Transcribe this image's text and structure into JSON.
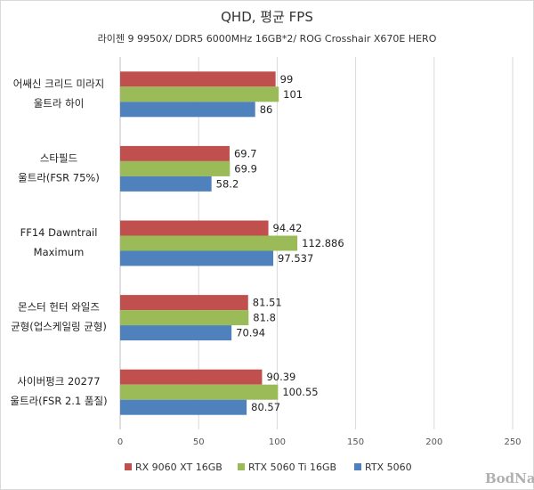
{
  "chart_data": {
    "type": "bar",
    "orientation": "horizontal",
    "title": "QHD, 평균 FPS",
    "subtitle": "라이젠 9 9950X/ DDR5 6000MHz 16GB*2/ ROG Crosshair X670E HERO",
    "categories": [
      [
        "어쌔신 크리드 미라지",
        "울트라 하이"
      ],
      [
        "스타필드",
        "울트라(FSR 75%)"
      ],
      [
        "FF14 Dawntrail",
        "Maximum"
      ],
      [
        "몬스터 헌터 와일즈",
        "균형(업스케일링 균형)"
      ],
      [
        "사이버펑크 20277",
        "울트라(FSR 2.1 품질)"
      ]
    ],
    "series": [
      {
        "name": "RX 9060 XT 16GB",
        "color": "#c0504d",
        "values": [
          99,
          69.7,
          94.42,
          81.51,
          90.39
        ],
        "labels": [
          "99",
          "69.7",
          "94.42",
          "81.51",
          "90.39"
        ]
      },
      {
        "name": "RTX 5060 Ti 16GB",
        "color": "#9bbb59",
        "values": [
          101,
          69.9,
          112.886,
          81.8,
          100.55
        ],
        "labels": [
          "101",
          "69.9",
          "112.886",
          "81.8",
          "100.55"
        ]
      },
      {
        "name": "RTX 5060",
        "color": "#4f81bd",
        "values": [
          86,
          58.2,
          97.537,
          70.94,
          80.57
        ],
        "labels": [
          "86",
          "58.2",
          "97.537",
          "70.94",
          "80.57"
        ]
      }
    ],
    "xlim": [
      0,
      250
    ],
    "xticks": [
      0,
      50,
      100,
      150,
      200,
      250
    ],
    "grid": "vertical",
    "legend": "bottom"
  },
  "watermark": "BodNara"
}
